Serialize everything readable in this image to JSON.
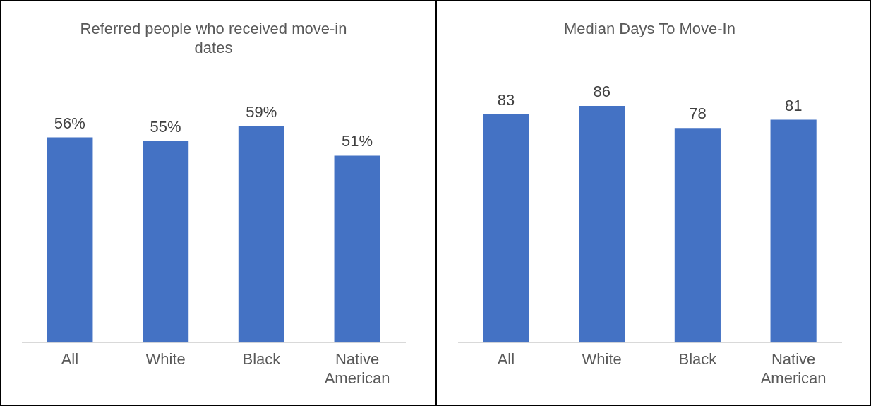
{
  "chart_data": [
    {
      "type": "bar",
      "title": "Referred people who received move-in dates",
      "categories": [
        "All",
        "White",
        "Black",
        "Native American"
      ],
      "values": [
        56,
        55,
        59,
        51
      ],
      "value_labels": [
        "56%",
        "55%",
        "59%",
        "51%"
      ],
      "color": "#4472c4",
      "grid": false,
      "legend": false
    },
    {
      "type": "bar",
      "title": "Median Days To Move-In",
      "categories": [
        "All",
        "White",
        "Black",
        "Native American"
      ],
      "values": [
        83,
        86,
        78,
        81
      ],
      "data_labels": true,
      "color": "#4472c4",
      "grid": false,
      "legend": false
    }
  ]
}
